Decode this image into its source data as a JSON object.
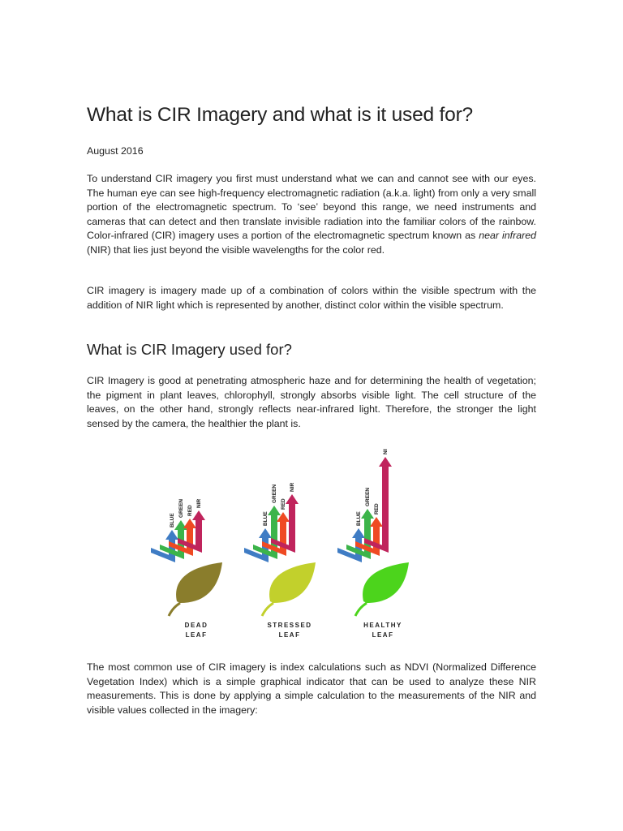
{
  "document": {
    "title": "What is CIR Imagery and what is it used for?",
    "date": "August 2016",
    "paragraph_1": {
      "before": "To understand CIR imagery you first must understand what we can and cannot see with our eyes. The human eye can see high-frequency electromagnetic radiation (a.k.a. light) from only a very small portion of the electromagnetic spectrum. To ‘see’ beyond this range, we need instruments and cameras that can detect and then translate invisible radiation into the familiar colors of the rainbow. Color-infrared (CIR) imagery uses a portion of the electromagnetic spectrum known as",
      "italic": "near infrared",
      "after": "(NIR) that lies just beyond the visible wavelengths for the color red."
    },
    "paragraph_2": "CIR imagery is imagery made up of a combination of colors within the visible spectrum with the addition of NIR light which is represented by another, distinct color within the visible spectrum.",
    "heading_2": "What is CIR Imagery used for?",
    "paragraph_3": "CIR Imagery is good at penetrating atmospheric haze and for determining the health of vegetation; the pigment in plant leaves, chlorophyll, strongly absorbs visible light. The cell structure of the leaves, on the other hand, strongly reflects near-infrared light. Therefore, the stronger the light sensed by the camera, the healthier the plant is.",
    "figure": {
      "panels": [
        {
          "arrows": [
            "BLUE",
            "GREEN",
            "RED",
            "NIR"
          ],
          "label": [
            "DEAD",
            "LEAF"
          ]
        },
        {
          "arrows": [
            "BLUE",
            "GREEN",
            "RED",
            "NIR"
          ],
          "label": [
            "STRESSED",
            "LEAF"
          ]
        },
        {
          "arrows": [
            "BLUE",
            "GREEN",
            "RED",
            "NIR"
          ],
          "label": [
            "HEALTHY",
            "LEAF"
          ]
        }
      ]
    },
    "paragraph_4": "The most common use of CIR imagery is index calculations such as NDVI (Normalized Difference Vegetation Index) which is a simple graphical indicator that can be used to analyze these NIR measurements. This is done by applying a simple calculation to the measurements of the NIR and visible values collected in the imagery:"
  }
}
